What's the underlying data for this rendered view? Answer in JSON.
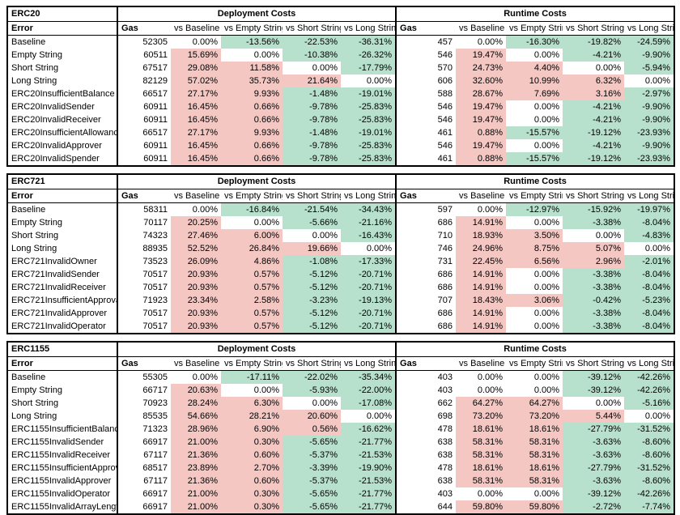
{
  "colors": {
    "positive_fill": "#f4c7c3",
    "negative_fill": "#b7e1cd",
    "zero_fill": "#ffffff",
    "border": "#000000"
  },
  "tables": [
    {
      "title": "ERC20",
      "groups": [
        "Deployment Costs",
        "Runtime Costs"
      ],
      "columns": [
        "Error",
        "Gas",
        "vs Baseline",
        "vs Empty String",
        "vs Short String",
        "vs Long String",
        "Gas",
        "vs Baseline",
        "vs Empty String",
        "vs Short String",
        "vs Long String"
      ],
      "rows": [
        [
          "Baseline",
          "52305",
          "0.00%",
          "-13.56%",
          "-22.53%",
          "-36.31%",
          "457",
          "0.00%",
          "-16.30%",
          "-19.82%",
          "-24.59%"
        ],
        [
          "Empty String",
          "60511",
          "15.69%",
          "0.00%",
          "-10.38%",
          "-26.32%",
          "546",
          "19.47%",
          "0.00%",
          "-4.21%",
          "-9.90%"
        ],
        [
          "Short String",
          "67517",
          "29.08%",
          "11.58%",
          "0.00%",
          "-17.79%",
          "570",
          "24.73%",
          "4.40%",
          "0.00%",
          "-5.94%"
        ],
        [
          "Long String",
          "82129",
          "57.02%",
          "35.73%",
          "21.64%",
          "0.00%",
          "606",
          "32.60%",
          "10.99%",
          "6.32%",
          "0.00%"
        ],
        [
          "ERC20InsufficientBalance",
          "66517",
          "27.17%",
          "9.93%",
          "-1.48%",
          "-19.01%",
          "588",
          "28.67%",
          "7.69%",
          "3.16%",
          "-2.97%"
        ],
        [
          "ERC20InvalidSender",
          "60911",
          "16.45%",
          "0.66%",
          "-9.78%",
          "-25.83%",
          "546",
          "19.47%",
          "0.00%",
          "-4.21%",
          "-9.90%"
        ],
        [
          "ERC20InvalidReceiver",
          "60911",
          "16.45%",
          "0.66%",
          "-9.78%",
          "-25.83%",
          "546",
          "19.47%",
          "0.00%",
          "-4.21%",
          "-9.90%"
        ],
        [
          "ERC20InsufficientAllowance",
          "66517",
          "27.17%",
          "9.93%",
          "-1.48%",
          "-19.01%",
          "461",
          "0.88%",
          "-15.57%",
          "-19.12%",
          "-23.93%"
        ],
        [
          "ERC20InvalidApprover",
          "60911",
          "16.45%",
          "0.66%",
          "-9.78%",
          "-25.83%",
          "546",
          "19.47%",
          "0.00%",
          "-4.21%",
          "-9.90%"
        ],
        [
          "ERC20InvalidSpender",
          "60911",
          "16.45%",
          "0.66%",
          "-9.78%",
          "-25.83%",
          "461",
          "0.88%",
          "-15.57%",
          "-19.12%",
          "-23.93%"
        ]
      ]
    },
    {
      "title": "ERC721",
      "groups": [
        "Deployment Costs",
        "Runtime Costs"
      ],
      "columns": [
        "Error",
        "Gas",
        "vs Baseline",
        "vs Empty String",
        "vs Short String",
        "vs Long String",
        "Gas",
        "vs Baseline",
        "vs Empty String",
        "vs Short String",
        "vs Long String"
      ],
      "rows": [
        [
          "Baseline",
          "58311",
          "0.00%",
          "-16.84%",
          "-21.54%",
          "-34.43%",
          "597",
          "0.00%",
          "-12.97%",
          "-15.92%",
          "-19.97%"
        ],
        [
          "Empty String",
          "70117",
          "20.25%",
          "0.00%",
          "-5.66%",
          "-21.16%",
          "686",
          "14.91%",
          "0.00%",
          "-3.38%",
          "-8.04%"
        ],
        [
          "Short String",
          "74323",
          "27.46%",
          "6.00%",
          "0.00%",
          "-16.43%",
          "710",
          "18.93%",
          "3.50%",
          "0.00%",
          "-4.83%"
        ],
        [
          "Long String",
          "88935",
          "52.52%",
          "26.84%",
          "19.66%",
          "0.00%",
          "746",
          "24.96%",
          "8.75%",
          "5.07%",
          "0.00%"
        ],
        [
          "ERC721InvalidOwner",
          "73523",
          "26.09%",
          "4.86%",
          "-1.08%",
          "-17.33%",
          "731",
          "22.45%",
          "6.56%",
          "2.96%",
          "-2.01%"
        ],
        [
          "ERC721InvalidSender",
          "70517",
          "20.93%",
          "0.57%",
          "-5.12%",
          "-20.71%",
          "686",
          "14.91%",
          "0.00%",
          "-3.38%",
          "-8.04%"
        ],
        [
          "ERC721InvalidReceiver",
          "70517",
          "20.93%",
          "0.57%",
          "-5.12%",
          "-20.71%",
          "686",
          "14.91%",
          "0.00%",
          "-3.38%",
          "-8.04%"
        ],
        [
          "ERC721InsufficientApproval",
          "71923",
          "23.34%",
          "2.58%",
          "-3.23%",
          "-19.13%",
          "707",
          "18.43%",
          "3.06%",
          "-0.42%",
          "-5.23%"
        ],
        [
          "ERC721InvalidApprover",
          "70517",
          "20.93%",
          "0.57%",
          "-5.12%",
          "-20.71%",
          "686",
          "14.91%",
          "0.00%",
          "-3.38%",
          "-8.04%"
        ],
        [
          "ERC721InvalidOperator",
          "70517",
          "20.93%",
          "0.57%",
          "-5.12%",
          "-20.71%",
          "686",
          "14.91%",
          "0.00%",
          "-3.38%",
          "-8.04%"
        ]
      ]
    },
    {
      "title": "ERC1155",
      "groups": [
        "Deployment Costs",
        "Runtime Costs"
      ],
      "columns": [
        "Error",
        "Gas",
        "vs Baseline",
        "vs Empty String",
        "vs Short String",
        "vs Long String",
        "Gas",
        "vs Baseline",
        "vs Empty String",
        "vs Short String",
        "vs Long String"
      ],
      "rows": [
        [
          "Baseline",
          "55305",
          "0.00%",
          "-17.11%",
          "-22.02%",
          "-35.34%",
          "403",
          "0.00%",
          "0.00%",
          "-39.12%",
          "-42.26%"
        ],
        [
          "Empty String",
          "66717",
          "20.63%",
          "0.00%",
          "-5.93%",
          "-22.00%",
          "403",
          "0.00%",
          "0.00%",
          "-39.12%",
          "-42.26%"
        ],
        [
          "Short String",
          "70923",
          "28.24%",
          "6.30%",
          "0.00%",
          "-17.08%",
          "662",
          "64.27%",
          "64.27%",
          "0.00%",
          "-5.16%"
        ],
        [
          "Long String",
          "85535",
          "54.66%",
          "28.21%",
          "20.60%",
          "0.00%",
          "698",
          "73.20%",
          "73.20%",
          "5.44%",
          "0.00%"
        ],
        [
          "ERC1155InsufficientBalance",
          "71323",
          "28.96%",
          "6.90%",
          "0.56%",
          "-16.62%",
          "478",
          "18.61%",
          "18.61%",
          "-27.79%",
          "-31.52%"
        ],
        [
          "ERC1155InvalidSender",
          "66917",
          "21.00%",
          "0.30%",
          "-5.65%",
          "-21.77%",
          "638",
          "58.31%",
          "58.31%",
          "-3.63%",
          "-8.60%"
        ],
        [
          "ERC1155InvalidReceiver",
          "67117",
          "21.36%",
          "0.60%",
          "-5.37%",
          "-21.53%",
          "638",
          "58.31%",
          "58.31%",
          "-3.63%",
          "-8.60%"
        ],
        [
          "ERC1155InsufficientApproval",
          "68517",
          "23.89%",
          "2.70%",
          "-3.39%",
          "-19.90%",
          "478",
          "18.61%",
          "18.61%",
          "-27.79%",
          "-31.52%"
        ],
        [
          "ERC1155InvalidApprover",
          "67117",
          "21.36%",
          "0.60%",
          "-5.37%",
          "-21.53%",
          "638",
          "58.31%",
          "58.31%",
          "-3.63%",
          "-8.60%"
        ],
        [
          "ERC1155InvalidOperator",
          "66917",
          "21.00%",
          "0.30%",
          "-5.65%",
          "-21.77%",
          "403",
          "0.00%",
          "0.00%",
          "-39.12%",
          "-42.26%"
        ],
        [
          "ERC1155InvalidArrayLength",
          "66917",
          "21.00%",
          "0.30%",
          "-5.65%",
          "-21.77%",
          "644",
          "59.80%",
          "59.80%",
          "-2.72%",
          "-7.74%"
        ]
      ]
    }
  ]
}
